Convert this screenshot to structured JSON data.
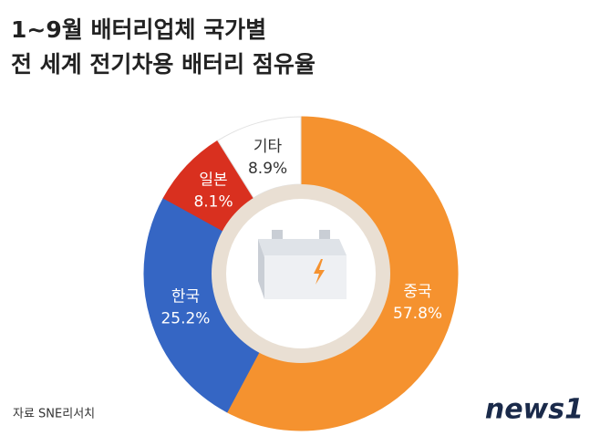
{
  "chart_data": {
    "type": "donut",
    "title": "1~9월 배터리업체 국가별",
    "subtitle": "전 세계 전기차용 배터리 점유율",
    "categories": [
      "중국",
      "한국",
      "일본",
      "기타"
    ],
    "values": [
      57.8,
      25.2,
      8.1,
      8.9
    ],
    "value_labels": [
      "57.8%",
      "25.2%",
      "8.1%",
      "8.9%"
    ],
    "colors": [
      "#f5922f",
      "#3566c4",
      "#d9301f",
      "#ffffff"
    ]
  },
  "source": "자료 SNE리서치",
  "logo": "news1"
}
